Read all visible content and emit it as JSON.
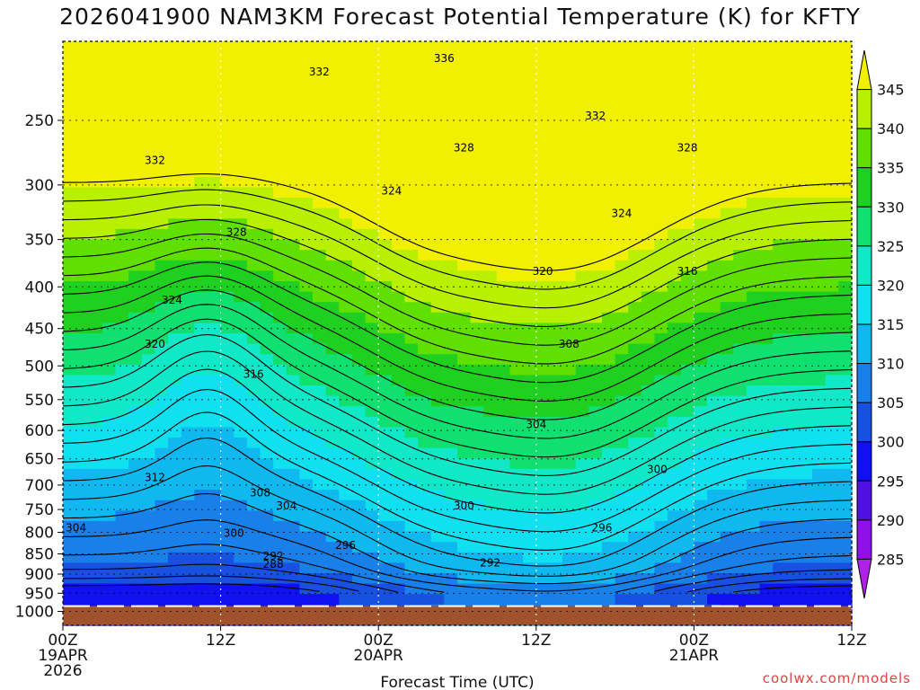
{
  "chart_data": {
    "type": "heatmap",
    "title": "2026041900 NAM3KM Forecast Potential Temperature (K) for KFTY",
    "xlabel": "Forecast Time (UTC)",
    "ylabel": "",
    "x_ticks": [
      {
        "label": "00Z",
        "date": "19APR",
        "year": "2026",
        "hour": 0
      },
      {
        "label": "12Z",
        "date": "",
        "year": "",
        "hour": 12
      },
      {
        "label": "00Z",
        "date": "20APR",
        "year": "",
        "hour": 24
      },
      {
        "label": "12Z",
        "date": "",
        "year": "",
        "hour": 36
      },
      {
        "label": "00Z",
        "date": "21APR",
        "year": "",
        "hour": 48
      },
      {
        "label": "12Z",
        "date": "",
        "year": "",
        "hour": 60
      }
    ],
    "xlim_hours": [
      0,
      60
    ],
    "y_scale": "log-pressure",
    "ylim_hpa": [
      1040,
      200
    ],
    "y_ticks": [
      250,
      300,
      350,
      400,
      450,
      500,
      550,
      600,
      650,
      700,
      750,
      800,
      850,
      900,
      950,
      1000
    ],
    "grid": "dotted",
    "colorbar": {
      "levels": [
        345,
        340,
        335,
        330,
        325,
        320,
        315,
        310,
        305,
        300,
        295,
        290,
        285
      ],
      "colors": [
        "#f0f000",
        "#b8f000",
        "#60e000",
        "#20d020",
        "#10e070",
        "#10e8c8",
        "#10e0f0",
        "#10b8f0",
        "#1880e8",
        "#1850e0",
        "#1010f0",
        "#5010e0",
        "#9010e8",
        "#b020e8"
      ]
    },
    "contour_labels": [
      {
        "text": "336",
        "hour": 29,
        "hpa": 210
      },
      {
        "text": "332",
        "hour": 19.5,
        "hpa": 218
      },
      {
        "text": "332",
        "hour": 40.5,
        "hpa": 247
      },
      {
        "text": "328",
        "hour": 30.5,
        "hpa": 270
      },
      {
        "text": "328",
        "hour": 47.5,
        "hpa": 270
      },
      {
        "text": "332",
        "hour": 7,
        "hpa": 280
      },
      {
        "text": "324",
        "hour": 25,
        "hpa": 305
      },
      {
        "text": "324",
        "hour": 42.5,
        "hpa": 325
      },
      {
        "text": "328",
        "hour": 13.2,
        "hpa": 343
      },
      {
        "text": "320",
        "hour": 36.5,
        "hpa": 383
      },
      {
        "text": "316",
        "hour": 47.5,
        "hpa": 383
      },
      {
        "text": "324",
        "hour": 8.3,
        "hpa": 415
      },
      {
        "text": "320",
        "hour": 7,
        "hpa": 470
      },
      {
        "text": "308",
        "hour": 38.5,
        "hpa": 470
      },
      {
        "text": "316",
        "hour": 14.5,
        "hpa": 512
      },
      {
        "text": "304",
        "hour": 36,
        "hpa": 590
      },
      {
        "text": "300",
        "hour": 45.2,
        "hpa": 670
      },
      {
        "text": "312",
        "hour": 7,
        "hpa": 685
      },
      {
        "text": "308",
        "hour": 15,
        "hpa": 715
      },
      {
        "text": "304",
        "hour": 17,
        "hpa": 742
      },
      {
        "text": "300",
        "hour": 30.5,
        "hpa": 742
      },
      {
        "text": "304",
        "hour": 1,
        "hpa": 790
      },
      {
        "text": "296",
        "hour": 41,
        "hpa": 790
      },
      {
        "text": "300",
        "hour": 13,
        "hpa": 802
      },
      {
        "text": "296",
        "hour": 21.5,
        "hpa": 830
      },
      {
        "text": "292",
        "hour": 16,
        "hpa": 855
      },
      {
        "text": "292",
        "hour": 32.5,
        "hpa": 872
      },
      {
        "text": "288",
        "hour": 16,
        "hpa": 875
      }
    ],
    "ground_level_hpa": 985
  },
  "credit": "coolwx.com/models"
}
